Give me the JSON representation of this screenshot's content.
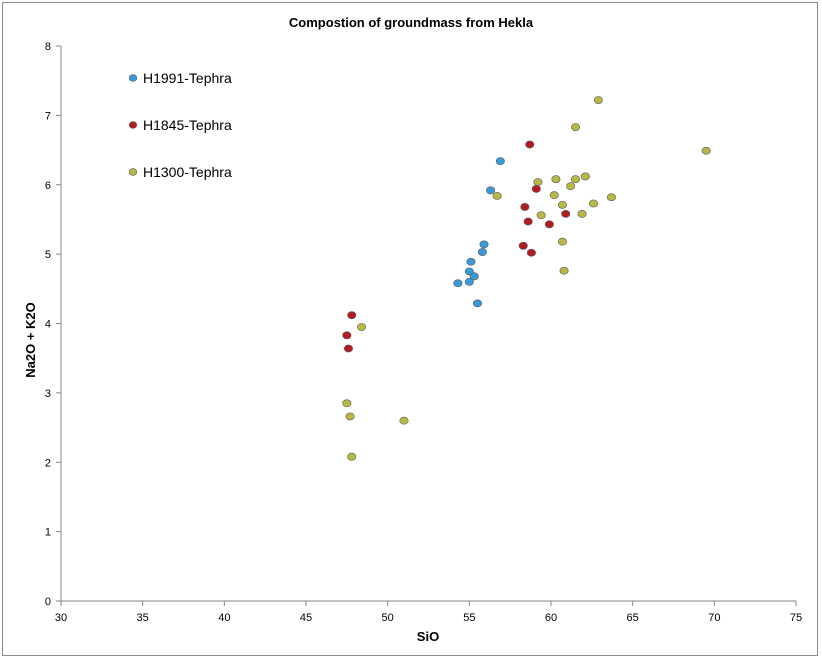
{
  "chart_data": {
    "type": "scatter",
    "title": "Compostion of groundmass from Hekla",
    "xlabel": "SiO",
    "ylabel": "Na2O + K2O",
    "xlim": [
      30,
      75
    ],
    "ylim": [
      0,
      8
    ],
    "xticks": [
      30,
      35,
      40,
      45,
      50,
      55,
      60,
      65,
      70,
      75
    ],
    "yticks": [
      0,
      1,
      2,
      3,
      4,
      5,
      6,
      7,
      8
    ],
    "grid": false,
    "legend_position": "top-left",
    "series": [
      {
        "name": "H1991-Tephra",
        "color": "#3a9ad9",
        "points": [
          [
            54.3,
            4.58
          ],
          [
            55.0,
            4.6
          ],
          [
            55.0,
            4.75
          ],
          [
            55.3,
            4.68
          ],
          [
            55.1,
            4.89
          ],
          [
            55.5,
            4.29
          ],
          [
            55.8,
            5.03
          ],
          [
            55.9,
            5.14
          ],
          [
            56.3,
            5.92
          ],
          [
            56.9,
            6.34
          ]
        ]
      },
      {
        "name": "H1845-Tephra",
        "color": "#b01c22",
        "points": [
          [
            47.5,
            3.83
          ],
          [
            47.6,
            3.64
          ],
          [
            47.8,
            4.12
          ],
          [
            58.3,
            5.12
          ],
          [
            58.8,
            5.02
          ],
          [
            58.4,
            5.68
          ],
          [
            58.6,
            5.47
          ],
          [
            59.1,
            5.94
          ],
          [
            58.7,
            6.58
          ],
          [
            59.9,
            5.43
          ],
          [
            60.9,
            5.58
          ]
        ]
      },
      {
        "name": "H1300-Tephra",
        "color": "#b8b845",
        "points": [
          [
            47.5,
            2.85
          ],
          [
            47.7,
            2.66
          ],
          [
            47.8,
            2.08
          ],
          [
            48.4,
            3.95
          ],
          [
            51.0,
            2.6
          ],
          [
            56.7,
            5.84
          ],
          [
            59.2,
            6.04
          ],
          [
            59.4,
            5.56
          ],
          [
            60.2,
            5.85
          ],
          [
            60.3,
            6.08
          ],
          [
            60.7,
            5.71
          ],
          [
            60.7,
            5.18
          ],
          [
            60.8,
            4.76
          ],
          [
            61.2,
            5.98
          ],
          [
            61.5,
            6.08
          ],
          [
            61.5,
            6.83
          ],
          [
            61.9,
            5.58
          ],
          [
            62.1,
            6.12
          ],
          [
            62.6,
            5.73
          ],
          [
            62.9,
            7.22
          ],
          [
            63.7,
            5.82
          ],
          [
            69.5,
            6.49
          ]
        ]
      }
    ]
  }
}
